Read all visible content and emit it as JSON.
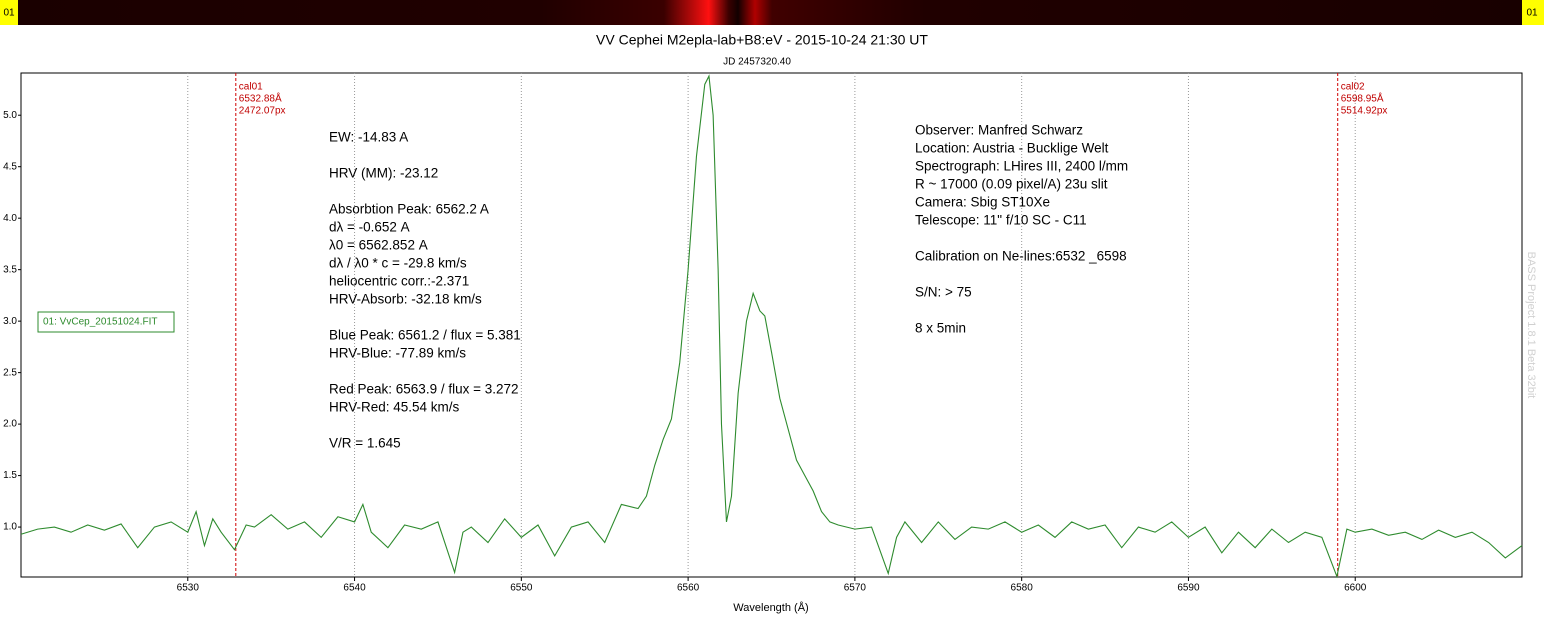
{
  "chart_data": {
    "type": "line",
    "title": "VV Cephei M2epla-lab+B8:eV - 2015-10-24 21:30 UT",
    "subtitle": "JD 2457320.40",
    "x_label": "Wavelength (Å)",
    "watermark": "BASS Project 1.8.1 Beta 32bit",
    "strip_labels": [
      "01",
      "01"
    ],
    "xlim": [
      6520,
      6610
    ],
    "ylim": [
      0.515,
      5.41
    ],
    "xticks": [
      6530,
      6540,
      6550,
      6560,
      6570,
      6580,
      6590,
      6600
    ],
    "yticks": [
      {
        "value": 1.0,
        "label": "1.0"
      },
      1.5,
      {
        "value": 2.0,
        "label": "2.0"
      },
      2.5,
      {
        "value": 3.0,
        "label": "3.0"
      },
      3.5,
      {
        "value": 4.0,
        "label": "4.0"
      },
      4.5,
      {
        "value": 5.0,
        "label": "5.0"
      }
    ],
    "grid": "x",
    "legend_position": "center left",
    "x": [
      6520,
      6521,
      6522,
      6523,
      6524,
      6525,
      6526,
      6527,
      6528,
      6529,
      6530,
      6530.5,
      6531,
      6531.5,
      6532,
      6532.8,
      6533.5,
      6534,
      6535,
      6536,
      6537,
      6538,
      6539,
      6540,
      6540.5,
      6541,
      6542,
      6543,
      6544,
      6545,
      6546,
      6546.5,
      6547,
      6548,
      6549,
      6550,
      6551,
      6552,
      6553,
      6554,
      6555,
      6556,
      6557,
      6557.5,
      6558,
      6558.5,
      6559,
      6559.5,
      6560,
      6560.5,
      6561,
      6561.25,
      6561.5,
      6561.8,
      6562,
      6562.3,
      6562.6,
      6563,
      6563.5,
      6563.9,
      6564.3,
      6564.6,
      6565,
      6565.5,
      6566,
      6566.5,
      6567,
      6567.5,
      6568,
      6568.5,
      6569,
      6570,
      6571,
      6572,
      6572.5,
      6573,
      6574,
      6575,
      6576,
      6577,
      6578,
      6579,
      6580,
      6581,
      6582,
      6583,
      6584,
      6585,
      6586,
      6587,
      6588,
      6589,
      6590,
      6591,
      6592,
      6593,
      6594,
      6595,
      6596,
      6597,
      6598,
      6598.9,
      6599.5,
      6600,
      6601,
      6602,
      6603,
      6604,
      6605,
      6606,
      6607,
      6608,
      6609,
      6610
    ],
    "series": [
      {
        "name": "01: VvCep_20151024.FIT",
        "color": "#2e8b2e",
        "values": [
          0.93,
          0.98,
          1.0,
          0.95,
          1.02,
          0.97,
          1.03,
          0.8,
          1.0,
          1.05,
          0.95,
          1.15,
          0.82,
          1.08,
          0.95,
          0.78,
          1.02,
          1.0,
          1.12,
          0.98,
          1.05,
          0.9,
          1.1,
          1.05,
          1.22,
          0.95,
          0.8,
          1.02,
          0.98,
          1.05,
          0.56,
          0.95,
          1.0,
          0.85,
          1.08,
          0.9,
          1.02,
          0.72,
          1.0,
          1.05,
          0.85,
          1.22,
          1.18,
          1.3,
          1.6,
          1.85,
          2.05,
          2.6,
          3.5,
          4.6,
          5.3,
          5.38,
          5.0,
          3.5,
          2.0,
          1.05,
          1.3,
          2.3,
          3.0,
          3.27,
          3.1,
          3.05,
          2.7,
          2.25,
          1.95,
          1.65,
          1.5,
          1.35,
          1.15,
          1.05,
          1.02,
          0.98,
          1.0,
          0.55,
          0.9,
          1.05,
          0.85,
          1.05,
          0.88,
          1.0,
          0.98,
          1.05,
          0.95,
          1.02,
          0.9,
          1.05,
          0.98,
          1.02,
          0.8,
          1.0,
          0.95,
          1.05,
          0.9,
          1.0,
          0.75,
          0.95,
          0.8,
          0.98,
          0.85,
          0.95,
          0.9,
          0.52,
          0.98,
          0.95,
          0.98,
          0.92,
          0.95,
          0.88,
          0.97,
          0.9,
          0.95,
          0.85,
          0.7,
          0.82
        ]
      }
    ],
    "cal_lines": [
      {
        "x": 6532.88,
        "labels": [
          "cal01",
          "6532.88Å",
          "2472.07px"
        ]
      },
      {
        "x": 6598.95,
        "labels": [
          "cal02",
          "6598.95Å",
          "5514.92px"
        ]
      }
    ],
    "info_left": [
      [
        "EW: -14.83 A"
      ],
      [
        "HRV (MM): -23.12"
      ],
      [
        "Absorbtion Peak: 6562.2 A",
        "dλ = -0.652 A",
        "λ0 = 6562.852 A",
        "dλ / λ0 * c = -29.8 km/s",
        "heliocentric corr.:-2.371",
        "HRV-Absorb: -32.18 km/s"
      ],
      [
        "Blue Peak: 6561.2 / flux = 5.381",
        "HRV-Blue: -77.89 km/s"
      ],
      [
        "Red Peak: 6563.9 / flux = 3.272",
        "HRV-Red: 45.54 km/s"
      ],
      [
        "V/R = 1.645"
      ]
    ],
    "info_right": [
      [
        "Observer: Manfred Schwarz",
        "Location: Austria - Bucklige Welt",
        "Spectrograph: LHires III, 2400 l/mm",
        "R ~ 17000 (0.09 pixel/A) 23u slit",
        "Camera: Sbig ST10Xe",
        "Telescope: 11\" f/10 SC - C11"
      ],
      [
        "Calibration on Ne-lines:6532 _6598"
      ],
      [
        "S/N: > 75"
      ],
      [
        "8 x 5min"
      ]
    ]
  }
}
